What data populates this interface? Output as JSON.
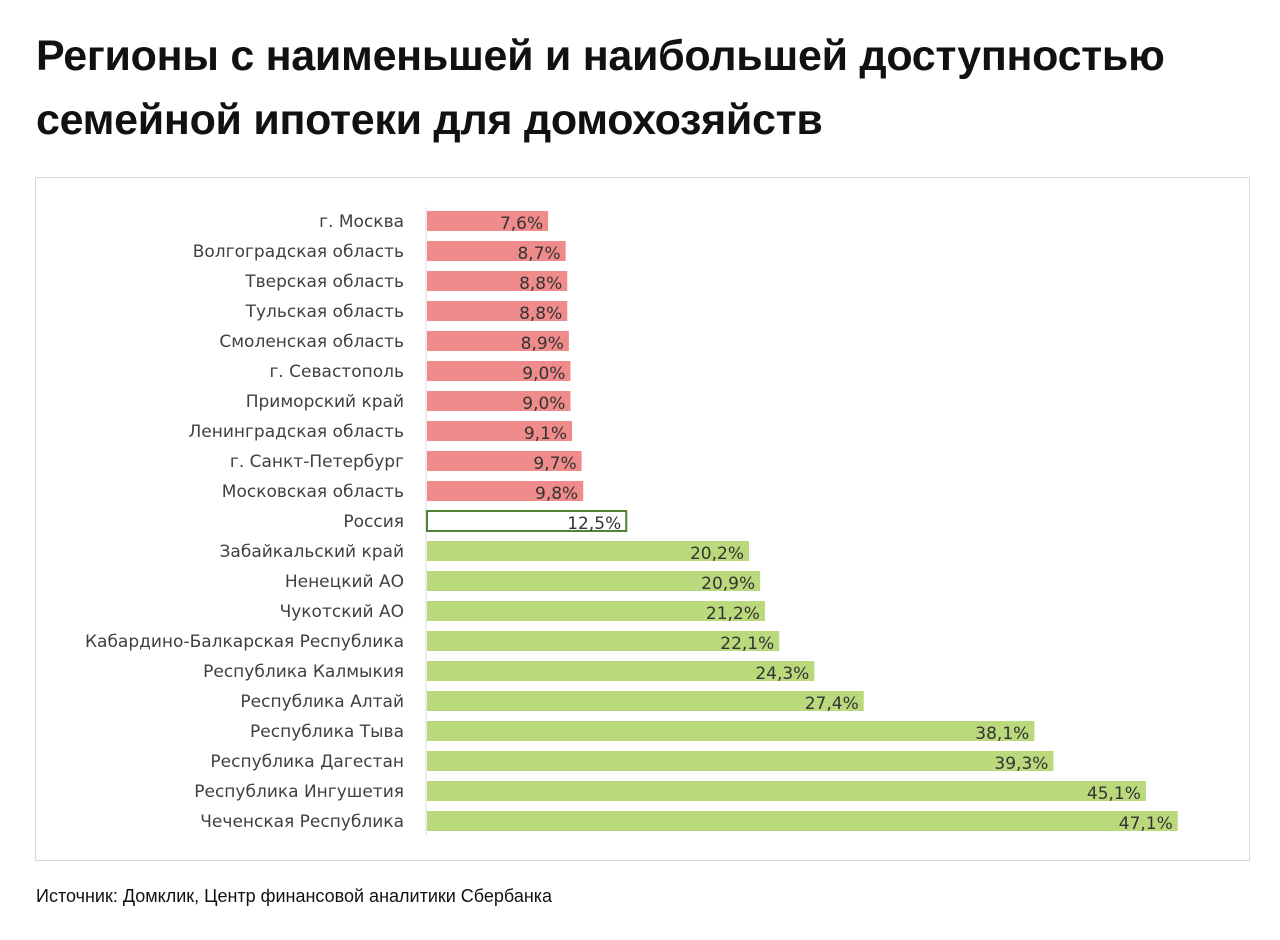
{
  "title": "Регионы с наименьшей и наибольшей доступностью семейной ипотеки для домохозяйств",
  "source": "Источник: Домклик, Центр финансовой аналитики Сбербанка",
  "colors": {
    "low": "#f08b8b",
    "russia_fill": "#ffffff",
    "russia_border": "#548235",
    "high": "#b9d97c",
    "label": "#404040"
  },
  "chart_data": {
    "type": "bar",
    "orientation": "horizontal",
    "title": "",
    "xlabel": "",
    "ylabel": "",
    "xlim": [
      0,
      48
    ],
    "grid": false,
    "categories": [
      "г. Москва",
      "Волгоградская область",
      "Тверская область",
      "Тульская область",
      "Смоленская область",
      "г. Севастополь",
      "Приморский край",
      "Ленинградская область",
      "г. Санкт-Петербург",
      "Московская область",
      "Россия",
      "Забайкальский край",
      "Ненецкий АО",
      "Чукотский АО",
      "Кабардино-Балкарская Республика",
      "Республика Калмыкия",
      "Республика Алтай",
      "Республика Тыва",
      "Республика Дагестан",
      "Республика Ингушетия",
      "Чеченская Республика"
    ],
    "values": [
      7.6,
      8.7,
      8.8,
      8.8,
      8.9,
      9.0,
      9.0,
      9.1,
      9.7,
      9.8,
      12.5,
      20.2,
      20.9,
      21.2,
      22.1,
      24.3,
      27.4,
      38.1,
      39.3,
      45.1,
      47.1
    ],
    "data_labels": [
      "7,6%",
      "8,7%",
      "8,8%",
      "8,8%",
      "8,9%",
      "9,0%",
      "9,0%",
      "9,1%",
      "9,7%",
      "9,8%",
      "12,5%",
      "20,2%",
      "20,9%",
      "21,2%",
      "22,1%",
      "24,3%",
      "27,4%",
      "38,1%",
      "39,3%",
      "45,1%",
      "47,1%"
    ],
    "groups": [
      "low",
      "low",
      "low",
      "low",
      "low",
      "low",
      "low",
      "low",
      "low",
      "low",
      "russia",
      "high",
      "high",
      "high",
      "high",
      "high",
      "high",
      "high",
      "high",
      "high",
      "high"
    ]
  }
}
